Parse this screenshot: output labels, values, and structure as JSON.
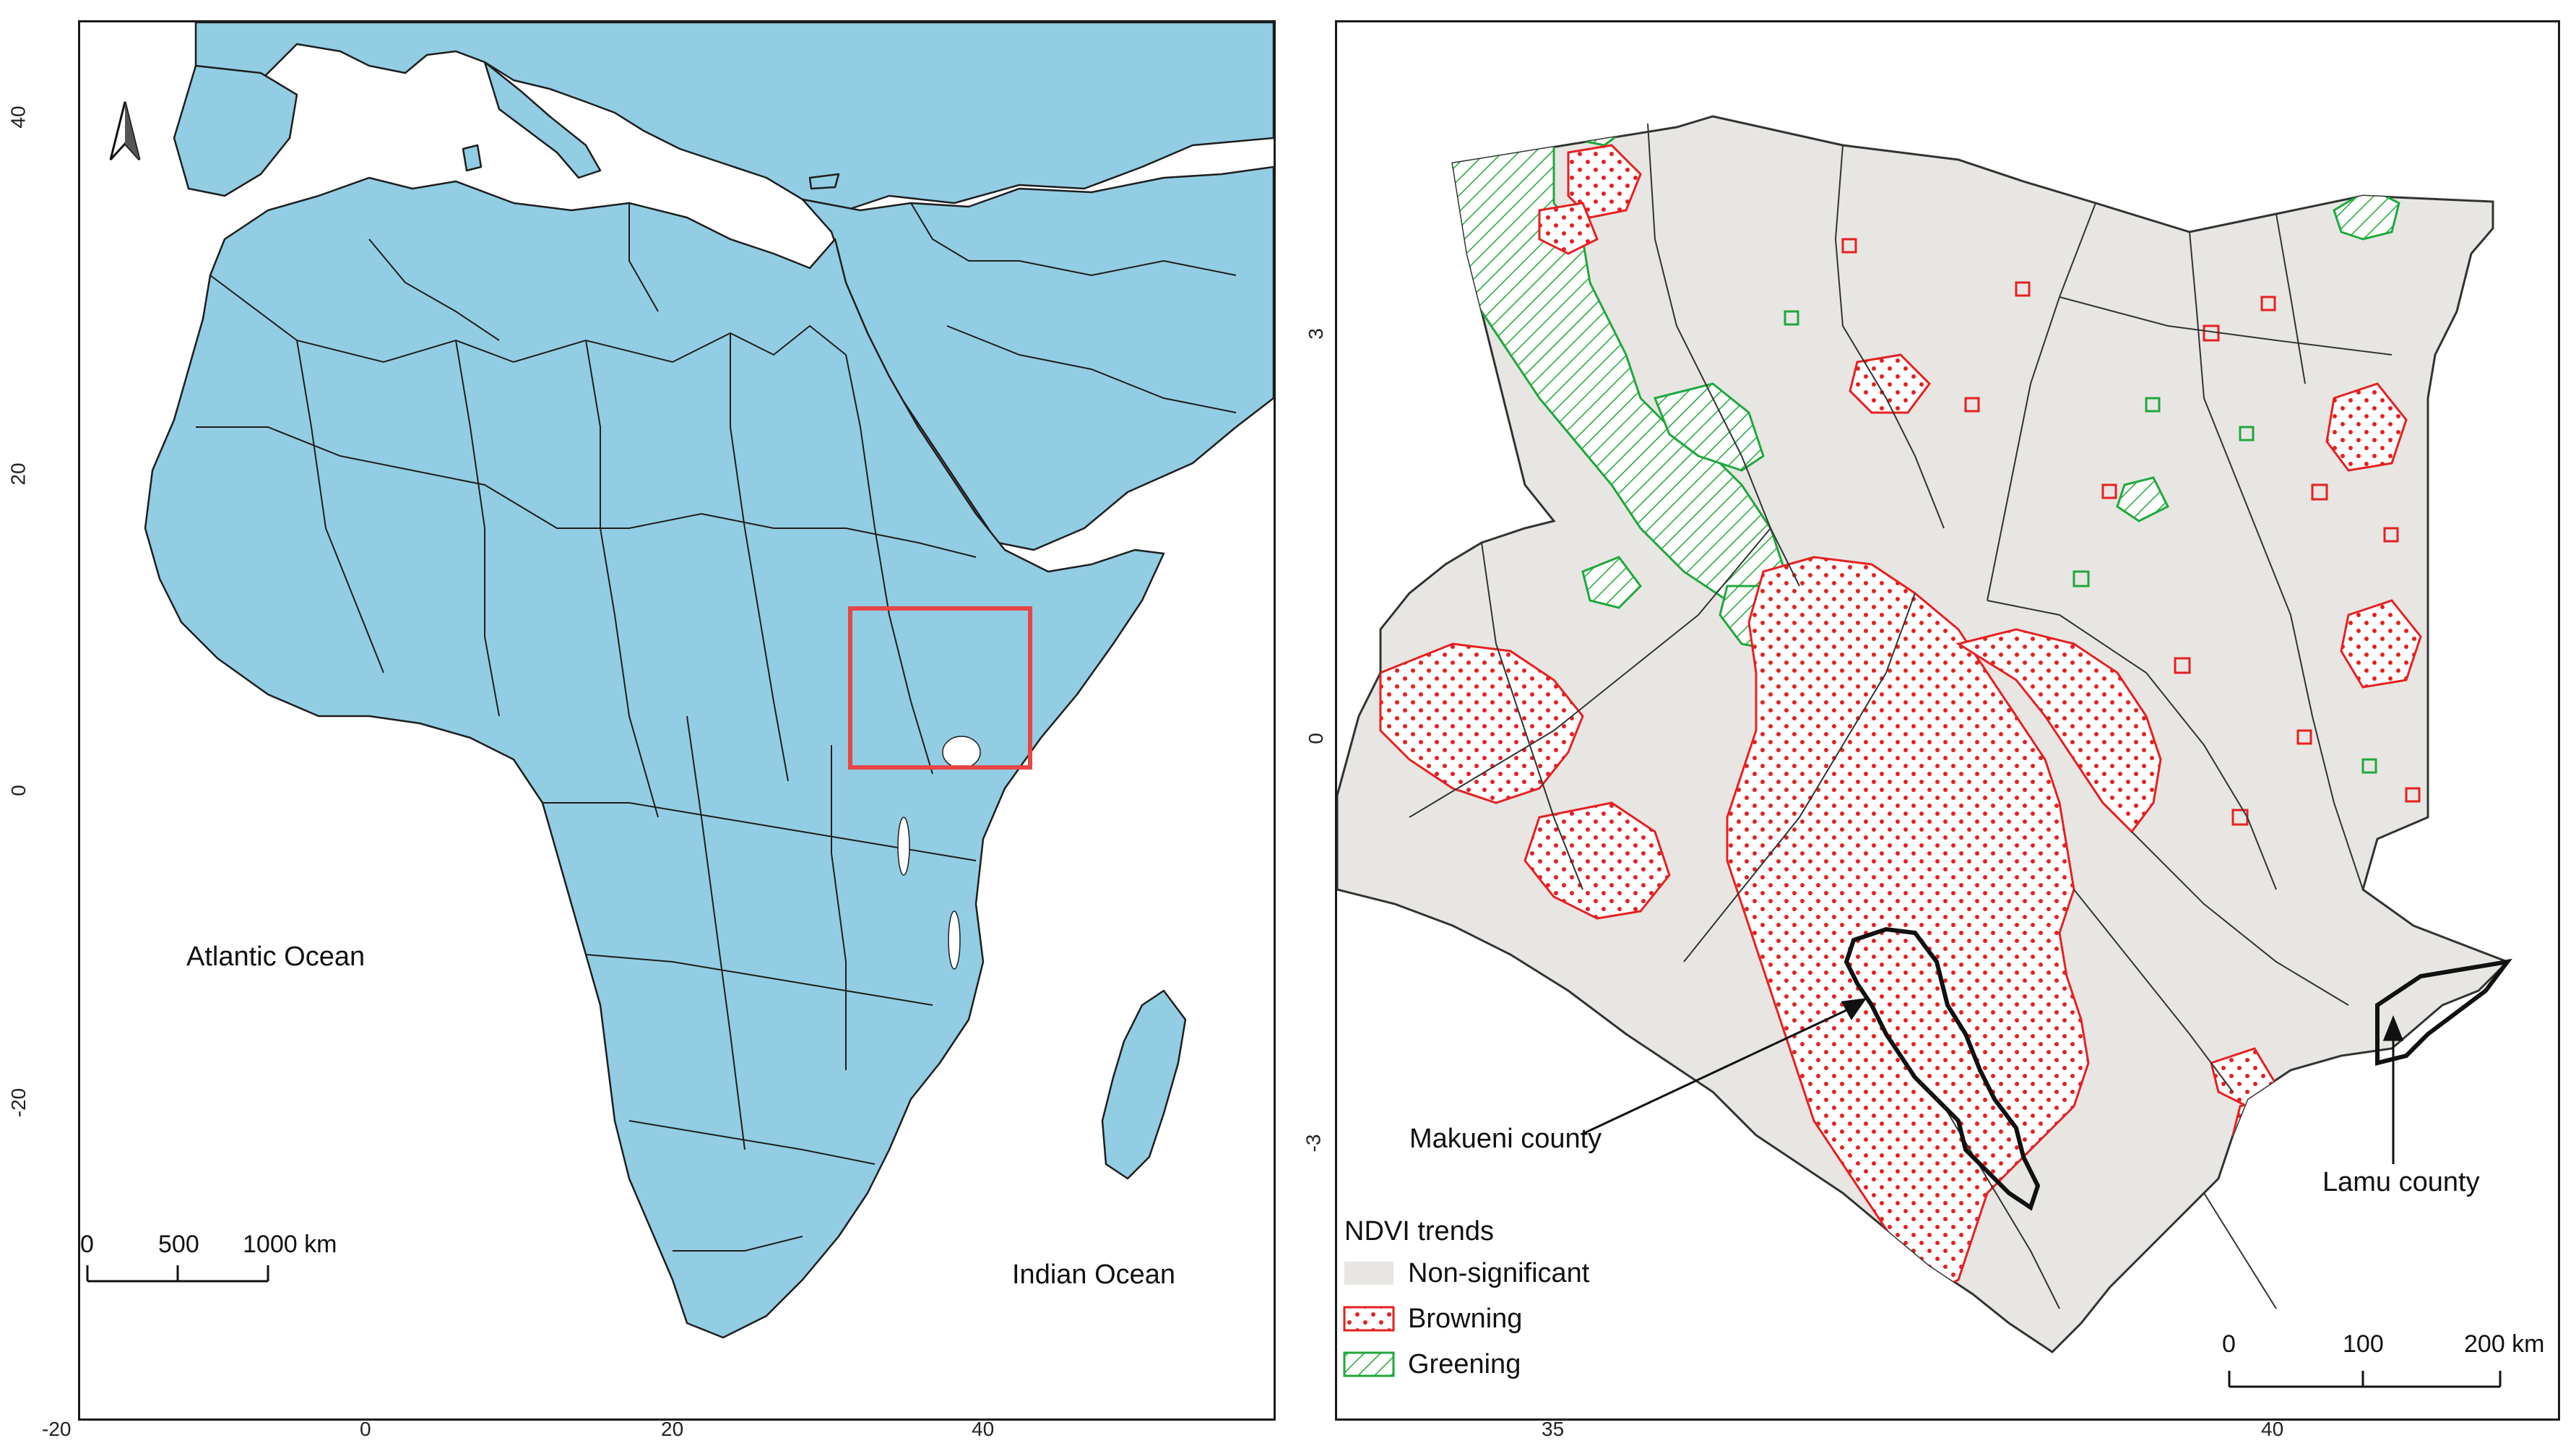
{
  "left_map": {
    "lat_ticks": [
      "40",
      "20",
      "0",
      "-20"
    ],
    "lon_ticks": [
      "-20",
      "0",
      "20",
      "40"
    ],
    "ocean_labels": {
      "atlantic": "Atlantic Ocean",
      "indian": "Indian Ocean"
    },
    "scale_labels": [
      "0",
      "500",
      "1000 km"
    ],
    "land_color": "#92cde3",
    "highlight_color": "#e64646",
    "north_arrow_icon": "north-arrow-icon"
  },
  "right_map": {
    "lat_ticks": [
      "3",
      "0",
      "-3"
    ],
    "lon_ticks": [
      "35",
      "40"
    ],
    "county_labels": {
      "makueni": "Makueni county",
      "lamu": "Lamu county"
    },
    "scale_labels": [
      "0",
      "100",
      "200 km"
    ],
    "legend": {
      "title": "NDVI trends",
      "items": [
        {
          "label": "Non-significant",
          "color": "#e8e6e3"
        },
        {
          "label": "Browning",
          "color": "#e62020"
        },
        {
          "label": "Greening",
          "color": "#1fa83c"
        }
      ]
    }
  }
}
